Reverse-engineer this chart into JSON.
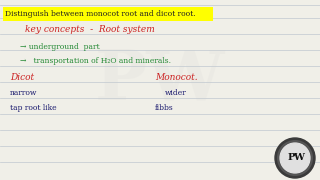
{
  "bg_color": "#f0efe8",
  "line_color": "#c0c8d0",
  "title_text": "Distinguish between monocot root and dicot root.",
  "title_bg": "#ffff00",
  "title_color": "#222222",
  "title_fontsize": 5.5,
  "heading_text": "key concepts  -  Root system",
  "heading_color": "#cc2222",
  "heading_fontsize": 6.5,
  "bullet1": "→ underground  part",
  "bullet2": "→   transportation of H₂O and minerals.",
  "bullet_color": "#228833",
  "bullet_fontsize": 5.5,
  "dicot_label": "Dicot",
  "monocot_label": "Monocot.",
  "label_color": "#cc2222",
  "label_fontsize": 6.5,
  "dicot_line1": "narrow",
  "dicot_line2": "tap root like",
  "monocot_line1": "wider",
  "monocot_line2": "fibbs",
  "detail_color": "#1a1a6e",
  "detail_fontsize": 5.5,
  "logo_outer_color": "#444444",
  "logo_inner_color": "#222222",
  "logo_text_color": "#ffffff",
  "watermark_alpha": 0.12
}
